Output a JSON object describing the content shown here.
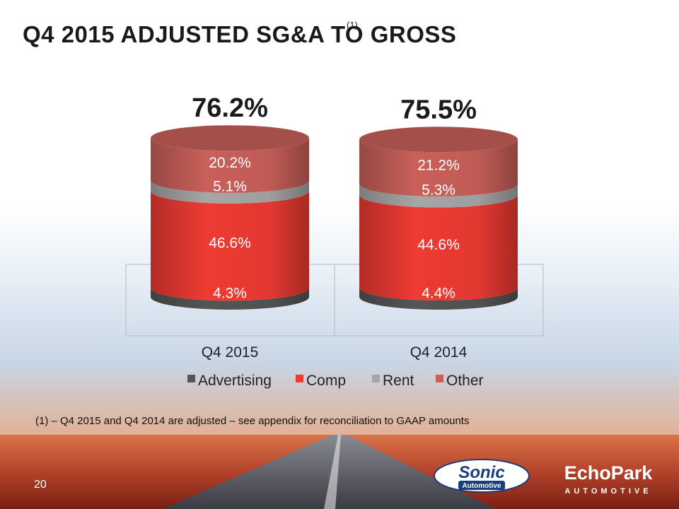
{
  "slide": {
    "title": "Q4 2015 ADJUSTED SG&A TO GROSS",
    "title_superscript": "(1)",
    "footnote": "(1) – Q4 2015 and Q4 2014 are adjusted – see appendix for reconciliation to GAAP amounts",
    "page_number": "20",
    "logos": {
      "sonic_main": "Sonic",
      "sonic_sub": "Automotive",
      "echopark_main": "EchoPark",
      "echopark_sub": "AUTOMOTIVE"
    }
  },
  "colors": {
    "advertising": "#555555",
    "comp": "#ee3b33",
    "rent": "#a6a6a6",
    "other": "#c9605a"
  },
  "chart_data": {
    "type": "bar",
    "stacked": true,
    "categories": [
      "Q4 2015",
      "Q4 2014"
    ],
    "totals": [
      "76.2%",
      "75.5%"
    ],
    "series": [
      {
        "name": "Advertising",
        "values": [
          4.3,
          4.4
        ],
        "labels": [
          "4.3%",
          "4.4%"
        ]
      },
      {
        "name": "Comp",
        "values": [
          46.6,
          44.6
        ],
        "labels": [
          "46.6%",
          "44.6%"
        ]
      },
      {
        "name": "Rent",
        "values": [
          5.1,
          5.3
        ],
        "labels": [
          "5.1%",
          "5.3%"
        ]
      },
      {
        "name": "Other",
        "values": [
          20.2,
          21.2
        ],
        "labels": [
          "20.2%",
          "21.2%"
        ]
      }
    ],
    "legend_position": "bottom",
    "grid": false
  }
}
